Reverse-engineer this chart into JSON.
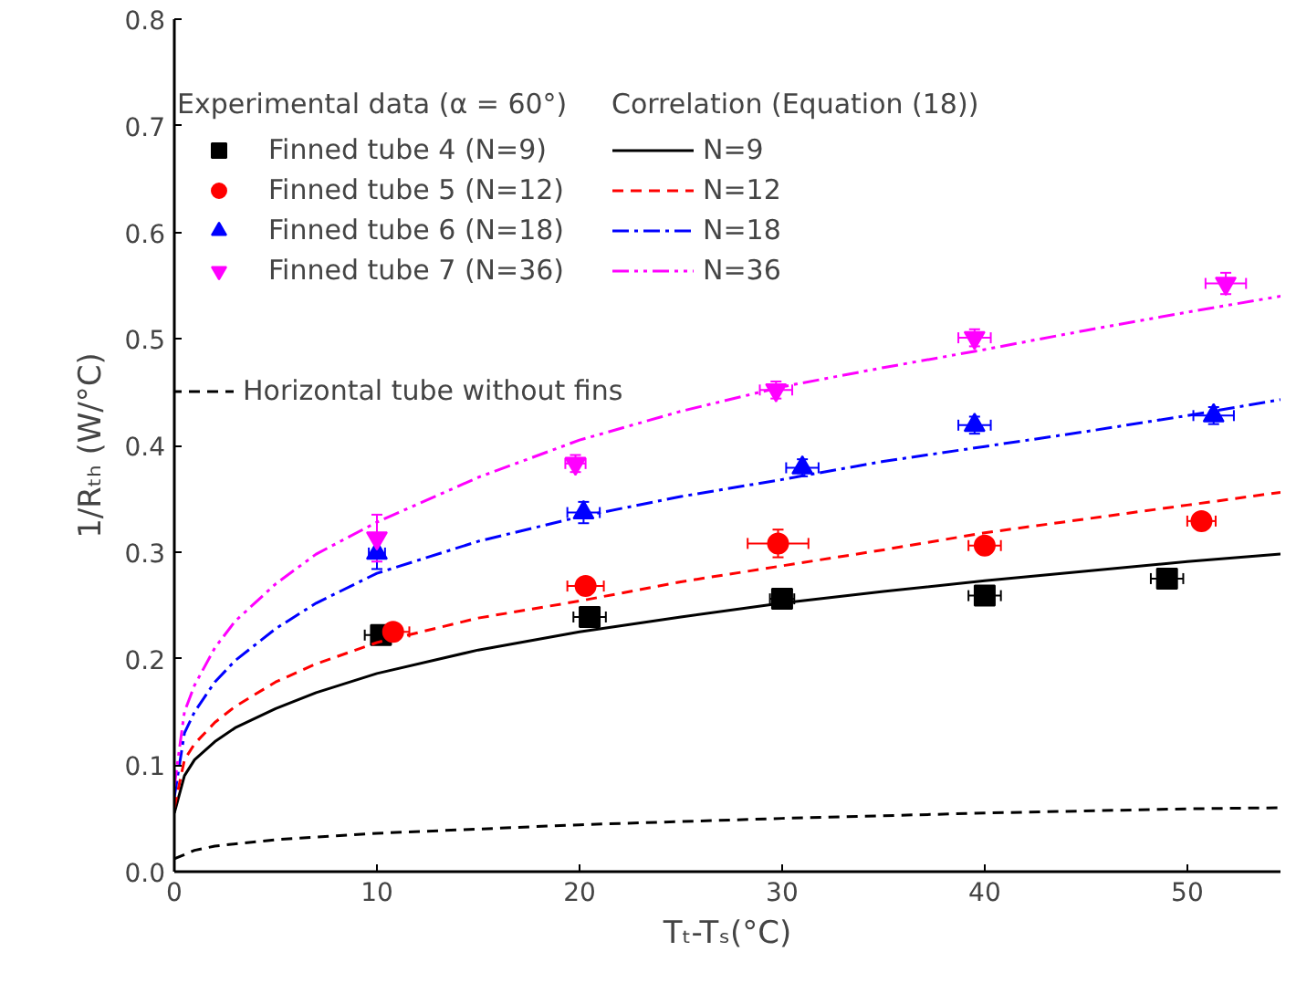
{
  "chart_data": {
    "type": "scatter",
    "xlabel": "Tₜ-Tₛ(°C)",
    "ylabel": "1/Rₜₕ (W/°C)",
    "legend_title": [
      "Experimental data (α = 60°)",
      "Correlation (Equation (18))"
    ],
    "legend": "top left",
    "grid": false,
    "xlim": [
      0,
      54.6
    ],
    "xticks": [
      0,
      10,
      20,
      30,
      40,
      50
    ],
    "ylim": [
      0,
      0.8
    ],
    "yticks": [
      {
        "value": 0,
        "label": "0.0"
      },
      0.1,
      0.2,
      0.3,
      0.4,
      0.5,
      0.6,
      0.7,
      0.8
    ],
    "series": [
      {
        "name": "Finned tube 4 (N=9)",
        "marker": "square",
        "color": "#000000",
        "x": [
          10.2,
          20.5,
          30,
          40,
          49
        ],
        "values": [
          0.222,
          0.239,
          0.256,
          0.259,
          0.275
        ],
        "errors": [
          0.008,
          0.008,
          0.006,
          0.006,
          0.006
        ],
        "xerrors": [
          0.8,
          0.8,
          0.6,
          0.8,
          0.8
        ]
      },
      {
        "name": "Finned tube 5 (N=12)",
        "marker": "circle",
        "color": "#ff0000",
        "x": [
          10.8,
          20.3,
          29.8,
          40,
          50.7
        ],
        "values": [
          0.225,
          0.268,
          0.308,
          0.306,
          0.329
        ],
        "errors": [
          0.008,
          0.008,
          0.013,
          0.006,
          0.006
        ],
        "xerrors": [
          0.8,
          0.9,
          1.5,
          0.8,
          0.7
        ]
      },
      {
        "name": "Finned tube 6 (N=18)",
        "marker": "triangle",
        "color": "#0000ff",
        "x": [
          10,
          20.2,
          31,
          39.5,
          51.3
        ],
        "values": [
          0.299,
          0.337,
          0.379,
          0.419,
          0.428
        ],
        "errors": [
          0.015,
          0.01,
          0.008,
          0.008,
          0.008
        ],
        "xerrors": [
          0.4,
          0.8,
          0.8,
          0.8,
          1.0
        ]
      },
      {
        "name": "Finned tube 7 (N=36)",
        "color": "#ff00ff",
        "x": [
          10,
          19.8,
          29.7,
          39.5,
          51.9
        ],
        "values": [
          0.313,
          0.383,
          0.452,
          0.501,
          0.552
        ],
        "errors": [
          0.022,
          0.008,
          0.008,
          0.008,
          0.01
        ],
        "xerrors": [
          null,
          0.5,
          0.8,
          0.8,
          1.0
        ]
      },
      {
        "name": "N=9",
        "type": "line",
        "line_style": "solid",
        "color": "#000000",
        "x": [
          0,
          0.5,
          1,
          2,
          3,
          5,
          7,
          10,
          15,
          20,
          25,
          30,
          35,
          40,
          45,
          50,
          54.6
        ],
        "values": [
          0.055,
          0.09,
          0.105,
          0.122,
          0.135,
          0.153,
          0.168,
          0.186,
          0.208,
          0.225,
          0.239,
          0.252,
          0.263,
          0.273,
          0.282,
          0.291,
          0.298
        ]
      },
      {
        "name": "N=12",
        "type": "line",
        "line_style": "dashed",
        "color": "#ff0000",
        "x": [
          0,
          0.5,
          1,
          2,
          3,
          5,
          7,
          10,
          15,
          20,
          25,
          30,
          35,
          40,
          45,
          50,
          54.6
        ],
        "values": [
          0.06,
          0.105,
          0.12,
          0.14,
          0.155,
          0.178,
          0.195,
          0.215,
          0.238,
          0.254,
          0.272,
          0.287,
          0.302,
          0.318,
          0.331,
          0.344,
          0.356
        ]
      },
      {
        "name": "N=18",
        "type": "line",
        "line_style": "dashdot",
        "color": "#0000ff",
        "x": [
          0,
          0.5,
          1,
          2,
          3,
          5,
          7,
          10,
          15,
          20,
          25,
          30,
          35,
          40,
          45,
          50,
          54.6
        ],
        "values": [
          0.07,
          0.13,
          0.15,
          0.178,
          0.198,
          0.228,
          0.252,
          0.28,
          0.31,
          0.333,
          0.352,
          0.368,
          0.385,
          0.399,
          0.413,
          0.428,
          0.443
        ]
      },
      {
        "name": "N=36",
        "type": "line",
        "line_style": "dashdotdot",
        "color": "#ff00ff",
        "x": [
          0,
          0.5,
          1,
          2,
          3,
          5,
          7,
          10,
          15,
          20,
          25,
          30,
          35,
          40,
          45,
          50,
          54.6
        ],
        "values": [
          0.08,
          0.15,
          0.175,
          0.21,
          0.235,
          0.27,
          0.298,
          0.328,
          0.37,
          0.405,
          0.432,
          0.455,
          0.473,
          0.49,
          0.508,
          0.525,
          0.54
        ]
      },
      {
        "name": "Horizontal tube without fins",
        "type": "line",
        "line_style": "dashed",
        "color": "#000000",
        "x": [
          0,
          1,
          2,
          5,
          10,
          20,
          30,
          40,
          50,
          54.6
        ],
        "values": [
          0.012,
          0.02,
          0.024,
          0.03,
          0.036,
          0.044,
          0.05,
          0.055,
          0.059,
          0.06
        ]
      }
    ]
  }
}
